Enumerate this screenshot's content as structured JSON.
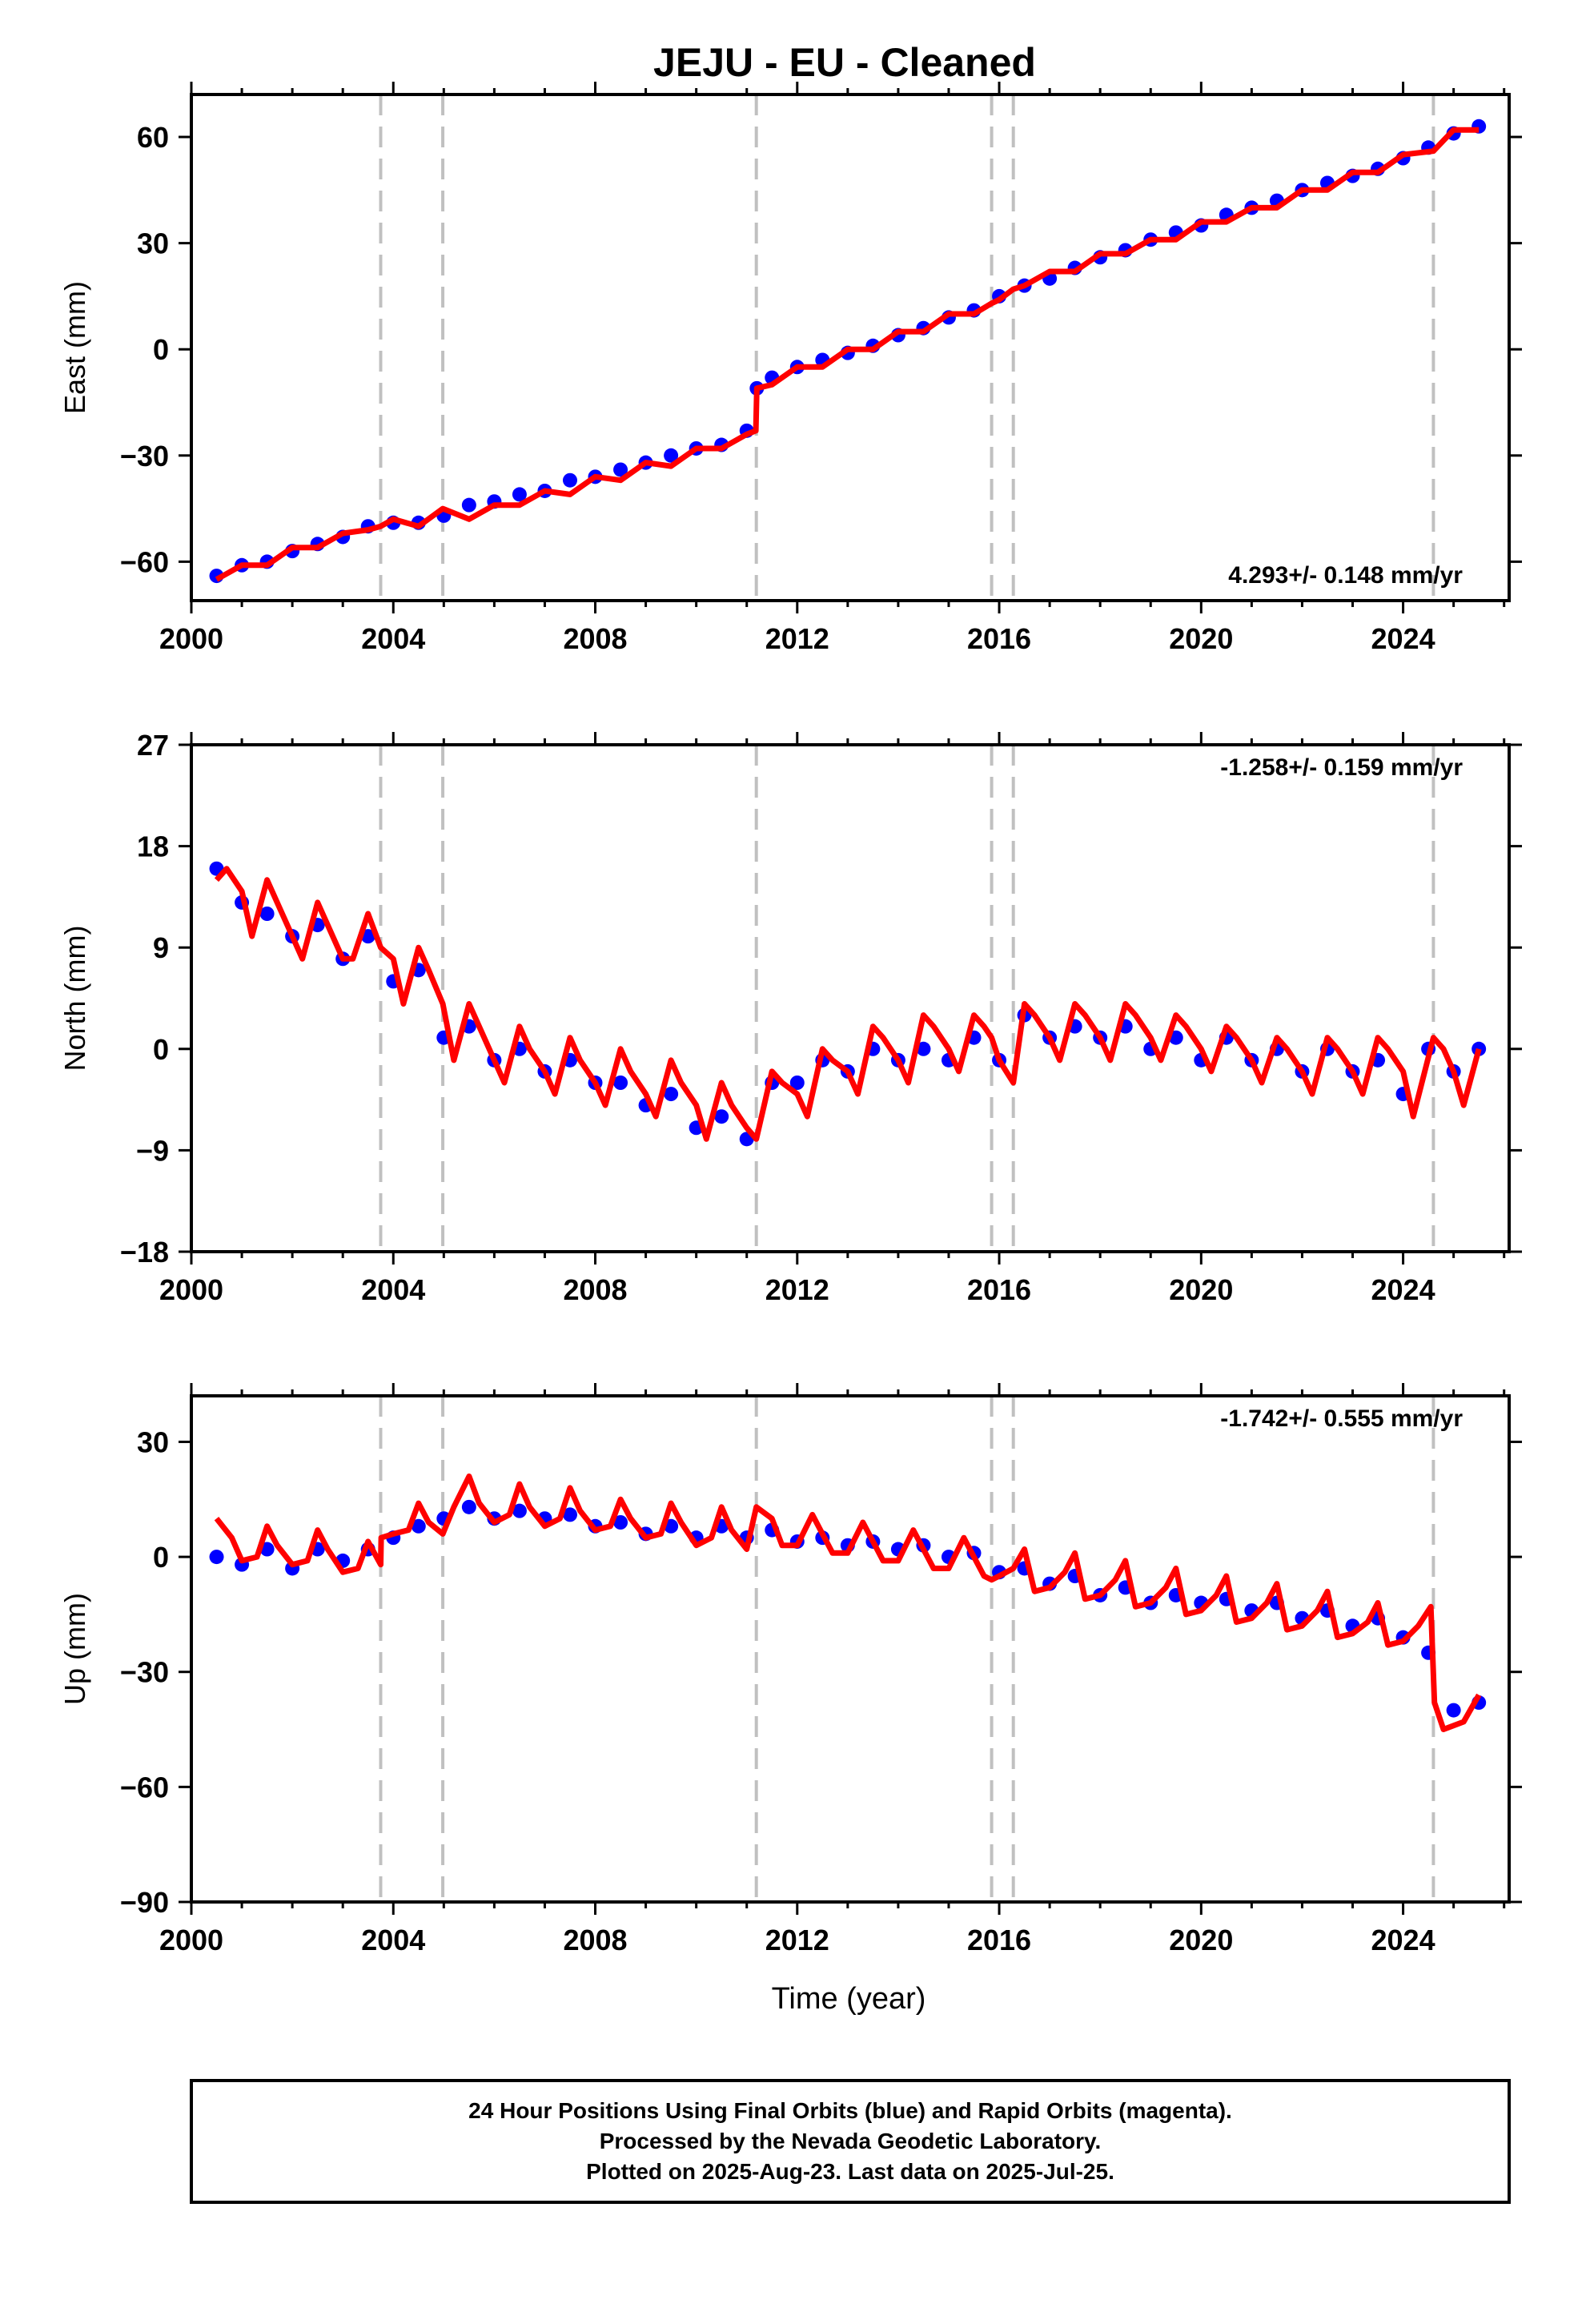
{
  "title": "JEJU  - EU - Cleaned",
  "x_axis_label": "Time (year)",
  "x_ticks": [
    "2000",
    "2004",
    "2008",
    "2012",
    "2016",
    "2020",
    "2024"
  ],
  "footer": {
    "line1": "24 Hour Positions Using Final Orbits (blue) and Rapid Orbits (magenta).",
    "line2": "Processed by the Nevada Geodetic Laboratory.",
    "line3": "Plotted on 2025-Aug-23. Last data on 2025-Jul-25."
  },
  "colors": {
    "final_orbits": "#0000ff",
    "model": "#ff0000",
    "steps": "#c0c0c0",
    "axes": "#000000"
  },
  "chart_data": [
    {
      "type": "scatter",
      "ylabel": "East (mm)",
      "rate": "4.293+/- 0.148 mm/yr",
      "rate_position": "bottom-right",
      "xlim": [
        2000,
        2026.1
      ],
      "ylim": [
        -71,
        72
      ],
      "yticks": [
        -60,
        -30,
        0,
        30,
        60
      ],
      "ytick_labels": [
        "−60",
        "−30",
        "0",
        "30",
        "60"
      ],
      "grid": false,
      "step_epochs": [
        2003.75,
        2004.98,
        2011.19,
        2015.85,
        2016.28,
        2024.6
      ],
      "series": [
        {
          "kind": "points",
          "x": [
            2000.5,
            2001.0,
            2001.5,
            2002.0,
            2002.5,
            2003.0,
            2003.5,
            2004.0,
            2004.5,
            2005.0,
            2005.5,
            2006.0,
            2006.5,
            2007.0,
            2007.5,
            2008.0,
            2008.5,
            2009.0,
            2009.5,
            2010.0,
            2010.5,
            2011.0,
            2011.2,
            2011.5,
            2012.0,
            2012.5,
            2013.0,
            2013.5,
            2014.0,
            2014.5,
            2015.0,
            2015.5,
            2016.0,
            2016.5,
            2017.0,
            2017.5,
            2018.0,
            2018.5,
            2019.0,
            2019.5,
            2020.0,
            2020.5,
            2021.0,
            2021.5,
            2022.0,
            2022.5,
            2023.0,
            2023.5,
            2024.0,
            2024.5,
            2025.0,
            2025.5
          ],
          "y": [
            -64,
            -61,
            -60,
            -57,
            -55,
            -53,
            -50,
            -49,
            -49,
            -47,
            -44,
            -43,
            -41,
            -40,
            -37,
            -36,
            -34,
            -32,
            -30,
            -28,
            -27,
            -23,
            -11,
            -8,
            -5,
            -3,
            -1,
            1,
            4,
            6,
            9,
            11,
            15,
            18,
            20,
            23,
            26,
            28,
            31,
            33,
            35,
            38,
            40,
            42,
            45,
            47,
            49,
            51,
            54,
            57,
            61,
            63
          ]
        },
        {
          "kind": "model",
          "x": [
            2000.5,
            2001.0,
            2001.5,
            2002.0,
            2002.5,
            2003.0,
            2003.5,
            2003.75,
            2004.0,
            2004.5,
            2004.98,
            2005.5,
            2006.0,
            2006.5,
            2007.0,
            2007.5,
            2008.0,
            2008.5,
            2009.0,
            2009.5,
            2010.0,
            2010.5,
            2011.0,
            2011.18,
            2011.2,
            2011.5,
            2012.0,
            2012.5,
            2013.0,
            2013.5,
            2014.0,
            2014.5,
            2015.0,
            2015.5,
            2015.85,
            2016.0,
            2016.28,
            2016.5,
            2017.0,
            2017.5,
            2018.0,
            2018.5,
            2019.0,
            2019.5,
            2020.0,
            2020.5,
            2021.0,
            2021.5,
            2022.0,
            2022.5,
            2023.0,
            2023.5,
            2024.0,
            2024.6,
            2025.0,
            2025.5
          ],
          "y": [
            -65,
            -61,
            -61,
            -56,
            -56,
            -52,
            -51,
            -50,
            -48,
            -50,
            -45,
            -48,
            -44,
            -44,
            -40,
            -41,
            -36,
            -37,
            -32,
            -33,
            -28,
            -28,
            -24,
            -23,
            -11,
            -10,
            -5,
            -5,
            0,
            0,
            5,
            5,
            10,
            10,
            13,
            14,
            17,
            18,
            22,
            22,
            27,
            27,
            31,
            31,
            36,
            36,
            40,
            40,
            45,
            45,
            50,
            50,
            55,
            56,
            62,
            62
          ]
        }
      ]
    },
    {
      "type": "scatter",
      "ylabel": "North (mm)",
      "rate": "-1.258+/- 0.159 mm/yr",
      "rate_position": "top-right",
      "xlim": [
        2000,
        2026.1
      ],
      "ylim": [
        -18,
        27
      ],
      "yticks": [
        -18,
        -9,
        0,
        9,
        18,
        27
      ],
      "ytick_labels": [
        "−18",
        "−9",
        "0",
        "9",
        "18",
        "27"
      ],
      "grid": false,
      "step_epochs": [
        2003.75,
        2004.98,
        2011.19,
        2015.85,
        2016.28,
        2024.6
      ],
      "series": [
        {
          "kind": "points",
          "x": [
            2000.5,
            2001.0,
            2001.5,
            2002.0,
            2002.5,
            2003.0,
            2003.5,
            2004.0,
            2004.5,
            2005.0,
            2005.5,
            2006.0,
            2006.5,
            2007.0,
            2007.5,
            2008.0,
            2008.5,
            2009.0,
            2009.5,
            2010.0,
            2010.5,
            2011.0,
            2011.5,
            2012.0,
            2012.5,
            2013.0,
            2013.5,
            2014.0,
            2014.5,
            2015.0,
            2015.5,
            2016.0,
            2016.5,
            2017.0,
            2017.5,
            2018.0,
            2018.5,
            2019.0,
            2019.5,
            2020.0,
            2020.5,
            2021.0,
            2021.5,
            2022.0,
            2022.5,
            2023.0,
            2023.5,
            2024.0,
            2024.5,
            2025.0,
            2025.5
          ],
          "y": [
            16,
            13,
            12,
            10,
            11,
            8,
            10,
            6,
            7,
            1,
            2,
            -1,
            0,
            -2,
            -1,
            -3,
            -3,
            -5,
            -4,
            -7,
            -6,
            -8,
            -3,
            -3,
            -1,
            -2,
            0,
            -1,
            0,
            -1,
            1,
            -1,
            3,
            1,
            2,
            1,
            2,
            0,
            1,
            -1,
            1,
            -1,
            0,
            -2,
            0,
            -2,
            -1,
            -4,
            0,
            -2,
            0
          ]
        },
        {
          "kind": "model",
          "x": [
            2000.5,
            2000.7,
            2001.0,
            2001.2,
            2001.5,
            2001.7,
            2002.0,
            2002.2,
            2002.5,
            2002.7,
            2003.0,
            2003.2,
            2003.5,
            2003.75,
            2004.0,
            2004.2,
            2004.5,
            2004.7,
            2004.98,
            2005.2,
            2005.5,
            2005.7,
            2006.0,
            2006.2,
            2006.5,
            2006.7,
            2007.0,
            2007.2,
            2007.5,
            2007.7,
            2008.0,
            2008.2,
            2008.5,
            2008.7,
            2009.0,
            2009.2,
            2009.5,
            2009.7,
            2010.0,
            2010.2,
            2010.5,
            2010.7,
            2011.0,
            2011.19,
            2011.5,
            2011.7,
            2012.0,
            2012.2,
            2012.5,
            2012.7,
            2013.0,
            2013.2,
            2013.5,
            2013.7,
            2014.0,
            2014.2,
            2014.5,
            2014.7,
            2015.0,
            2015.2,
            2015.5,
            2015.7,
            2015.85,
            2016.0,
            2016.28,
            2016.5,
            2016.7,
            2017.0,
            2017.2,
            2017.5,
            2017.7,
            2018.0,
            2018.2,
            2018.5,
            2018.7,
            2019.0,
            2019.2,
            2019.5,
            2019.7,
            2020.0,
            2020.2,
            2020.5,
            2020.7,
            2021.0,
            2021.2,
            2021.5,
            2021.7,
            2022.0,
            2022.2,
            2022.5,
            2022.7,
            2023.0,
            2023.2,
            2023.5,
            2023.7,
            2024.0,
            2024.2,
            2024.6,
            2024.8,
            2025.0,
            2025.2,
            2025.5
          ],
          "y": [
            15,
            16,
            14,
            10,
            15,
            13,
            10,
            8,
            13,
            11,
            8,
            8,
            12,
            9,
            8,
            4,
            9,
            7,
            4,
            -1,
            4,
            2,
            -1,
            -3,
            2,
            0,
            -2,
            -4,
            1,
            -1,
            -3,
            -5,
            0,
            -2,
            -4,
            -6,
            -1,
            -3,
            -5,
            -8,
            -3,
            -5,
            -7,
            -8,
            -2,
            -3,
            -4,
            -6,
            0,
            -1,
            -2,
            -4,
            2,
            1,
            -1,
            -3,
            3,
            2,
            0,
            -2,
            3,
            2,
            1,
            -1,
            -3,
            4,
            3,
            1,
            -1,
            4,
            3,
            1,
            -1,
            4,
            3,
            1,
            -1,
            3,
            2,
            0,
            -2,
            2,
            1,
            -1,
            -3,
            1,
            0,
            -2,
            -4,
            1,
            0,
            -2,
            -4,
            1,
            0,
            -2,
            -6,
            1,
            0,
            -2,
            -5,
            0
          ]
        }
      ]
    },
    {
      "type": "scatter",
      "ylabel": "Up (mm)",
      "rate": "-1.742+/- 0.555 mm/yr",
      "rate_position": "top-right",
      "xlim": [
        2000,
        2026.1
      ],
      "ylim": [
        -90,
        42
      ],
      "yticks": [
        -90,
        -60,
        -30,
        0,
        30
      ],
      "ytick_labels": [
        "−90",
        "−60",
        "−30",
        "0",
        "30"
      ],
      "grid": false,
      "step_epochs": [
        2003.75,
        2004.98,
        2011.19,
        2015.85,
        2016.28,
        2024.6
      ],
      "series": [
        {
          "kind": "points",
          "x": [
            2000.5,
            2001.0,
            2001.5,
            2002.0,
            2002.5,
            2003.0,
            2003.5,
            2004.0,
            2004.5,
            2005.0,
            2005.5,
            2006.0,
            2006.5,
            2007.0,
            2007.5,
            2008.0,
            2008.5,
            2009.0,
            2009.5,
            2010.0,
            2010.5,
            2011.0,
            2011.5,
            2012.0,
            2012.5,
            2013.0,
            2013.5,
            2014.0,
            2014.5,
            2015.0,
            2015.5,
            2016.0,
            2016.5,
            2017.0,
            2017.5,
            2018.0,
            2018.5,
            2019.0,
            2019.5,
            2020.0,
            2020.5,
            2021.0,
            2021.5,
            2022.0,
            2022.5,
            2023.0,
            2023.5,
            2024.0,
            2024.5,
            2025.0,
            2025.5
          ],
          "y": [
            0,
            -2,
            2,
            -3,
            2,
            -1,
            2,
            5,
            8,
            10,
            13,
            10,
            12,
            10,
            11,
            8,
            9,
            6,
            8,
            5,
            8,
            5,
            7,
            4,
            5,
            3,
            4,
            2,
            3,
            0,
            1,
            -4,
            -3,
            -7,
            -5,
            -10,
            -8,
            -12,
            -10,
            -12,
            -11,
            -14,
            -12,
            -16,
            -14,
            -18,
            -16,
            -21,
            -25,
            -40,
            -38
          ]
        },
        {
          "kind": "model",
          "x": [
            2000.5,
            2000.8,
            2001.0,
            2001.3,
            2001.5,
            2001.7,
            2002.0,
            2002.3,
            2002.5,
            2002.7,
            2003.0,
            2003.3,
            2003.5,
            2003.75,
            2003.76,
            2004.0,
            2004.3,
            2004.5,
            2004.7,
            2004.98,
            2005.2,
            2005.5,
            2005.7,
            2006.0,
            2006.3,
            2006.5,
            2006.7,
            2007.0,
            2007.3,
            2007.5,
            2007.7,
            2008.0,
            2008.3,
            2008.5,
            2008.7,
            2009.0,
            2009.3,
            2009.5,
            2009.7,
            2010.0,
            2010.3,
            2010.5,
            2010.7,
            2011.0,
            2011.19,
            2011.5,
            2011.7,
            2012.0,
            2012.3,
            2012.5,
            2012.7,
            2013.0,
            2013.3,
            2013.5,
            2013.7,
            2014.0,
            2014.3,
            2014.5,
            2014.7,
            2015.0,
            2015.3,
            2015.5,
            2015.7,
            2015.85,
            2016.0,
            2016.28,
            2016.5,
            2016.7,
            2017.0,
            2017.3,
            2017.5,
            2017.7,
            2018.0,
            2018.3,
            2018.5,
            2018.7,
            2019.0,
            2019.3,
            2019.5,
            2019.7,
            2020.0,
            2020.3,
            2020.5,
            2020.7,
            2021.0,
            2021.3,
            2021.5,
            2021.7,
            2022.0,
            2022.3,
            2022.5,
            2022.7,
            2023.0,
            2023.3,
            2023.5,
            2023.7,
            2024.0,
            2024.3,
            2024.55,
            2024.62,
            2024.8,
            2025.2,
            2025.5
          ],
          "y": [
            10,
            5,
            -1,
            0,
            8,
            3,
            -2,
            -1,
            7,
            2,
            -4,
            -3,
            4,
            -2,
            5,
            6,
            7,
            14,
            9,
            6,
            13,
            21,
            14,
            9,
            11,
            19,
            13,
            8,
            10,
            18,
            12,
            7,
            8,
            15,
            10,
            5,
            6,
            14,
            9,
            3,
            5,
            13,
            7,
            2,
            13,
            10,
            3,
            3,
            11,
            6,
            1,
            1,
            9,
            4,
            -1,
            -1,
            7,
            2,
            -3,
            -3,
            5,
            0,
            -5,
            -6,
            -5,
            -3,
            2,
            -9,
            -8,
            -4,
            1,
            -11,
            -10,
            -6,
            -1,
            -13,
            -12,
            -8,
            -3,
            -15,
            -14,
            -10,
            -5,
            -17,
            -16,
            -12,
            -7,
            -19,
            -18,
            -14,
            -9,
            -21,
            -20,
            -17,
            -12,
            -23,
            -22,
            -18,
            -13,
            -38,
            -45,
            -43,
            -36
          ]
        }
      ]
    }
  ]
}
